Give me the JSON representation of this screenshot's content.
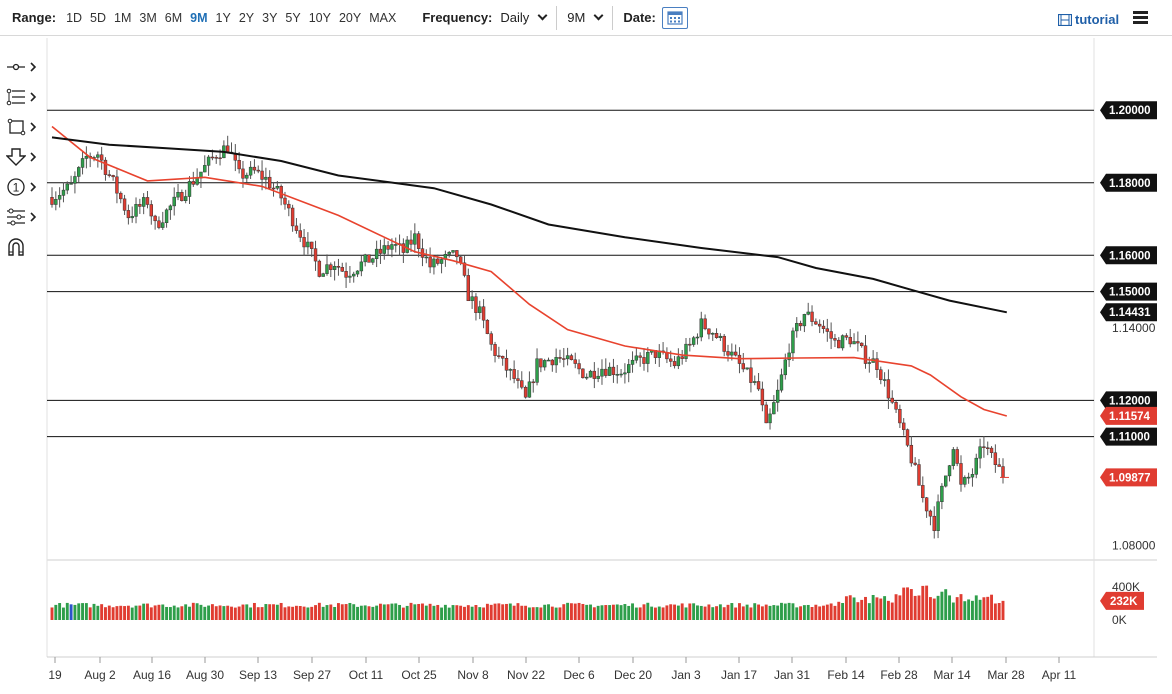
{
  "toolbar": {
    "range_label": "Range:",
    "ranges": [
      "1D",
      "5D",
      "1M",
      "3M",
      "6M",
      "9M",
      "1Y",
      "2Y",
      "3Y",
      "5Y",
      "10Y",
      "20Y",
      "MAX"
    ],
    "active_range": "9M",
    "frequency_label": "Frequency:",
    "frequency_value": "Daily",
    "period_value": "9M",
    "date_label": "Date:",
    "tutorial_label": "tutorial"
  },
  "tools": [
    "crosshair-tool-icon",
    "fibonacci-tool-icon",
    "rectangle-tool-icon",
    "arrow-down-tool-icon",
    "number-marker-tool-icon",
    "settings-sliders-icon",
    "magnet-icon"
  ],
  "colors": {
    "bull": "#2e9e4a",
    "bear": "#e03c31",
    "ma_short": "#e8432e",
    "ma_long": "#111111",
    "price_tag": "#e03c31",
    "level_tag": "#111111"
  },
  "chart_data": {
    "type": "candlestick",
    "title": "",
    "price_axis": {
      "ylim": [
        1.071,
        1.2045
      ],
      "tick_labels": [
        "1.14000",
        "1.08000"
      ],
      "level_lines": [
        "1.20000",
        "1.18000",
        "1.16000",
        "1.15000",
        "1.12000",
        "1.11000"
      ]
    },
    "x_axis": {
      "tick_labels": [
        "19",
        "Aug 2",
        "Aug 16",
        "Aug 30",
        "Sep 13",
        "Sep 27",
        "Oct 11",
        "Oct 25",
        "Nov 8",
        "Nov 22",
        "Dec 6",
        "Dec 20",
        "Jan 3",
        "Jan 17",
        "Jan 31",
        "Feb 14",
        "Feb 28",
        "Mar 14",
        "Mar 28",
        "Apr 11"
      ]
    },
    "tags": [
      {
        "label": "1.20000",
        "value": 1.2,
        "kind": "level"
      },
      {
        "label": "1.18000",
        "value": 1.18,
        "kind": "level"
      },
      {
        "label": "1.16000",
        "value": 1.16,
        "kind": "level"
      },
      {
        "label": "1.15000",
        "value": 1.15,
        "kind": "level"
      },
      {
        "label": "1.14431",
        "value": 1.14431,
        "kind": "ma_long"
      },
      {
        "label": "1.12000",
        "value": 1.12,
        "kind": "level"
      },
      {
        "label": "1.11574",
        "value": 1.11574,
        "kind": "ma_short"
      },
      {
        "label": "1.11000",
        "value": 1.11,
        "kind": "level"
      },
      {
        "label": "1.09877",
        "value": 1.09877,
        "kind": "price"
      }
    ],
    "last_price": 1.09877,
    "series": [
      {
        "name": "",
        "type": "moving-average",
        "color": "#e8432e",
        "points": [
          [
            0,
            1.1955
          ],
          [
            10,
            1.187
          ],
          [
            25,
            1.1805
          ],
          [
            40,
            1.1815
          ],
          [
            55,
            1.179
          ],
          [
            75,
            1.171
          ],
          [
            95,
            1.161
          ],
          [
            105,
            1.1585
          ],
          [
            115,
            1.1555
          ],
          [
            125,
            1.1465
          ],
          [
            135,
            1.1395
          ],
          [
            150,
            1.135
          ],
          [
            165,
            1.1325
          ],
          [
            180,
            1.1315
          ],
          [
            195,
            1.1317
          ],
          [
            210,
            1.1318
          ],
          [
            225,
            1.1295
          ],
          [
            230,
            1.127
          ],
          [
            238,
            1.121
          ],
          [
            244,
            1.1175
          ],
          [
            250,
            1.1157
          ]
        ]
      },
      {
        "name": "",
        "type": "moving-average",
        "color": "#111111",
        "points": [
          [
            0,
            1.1925
          ],
          [
            15,
            1.1905
          ],
          [
            30,
            1.1895
          ],
          [
            45,
            1.1885
          ],
          [
            60,
            1.186
          ],
          [
            75,
            1.182
          ],
          [
            100,
            1.1785
          ],
          [
            115,
            1.174
          ],
          [
            130,
            1.1685
          ],
          [
            150,
            1.165
          ],
          [
            170,
            1.162
          ],
          [
            190,
            1.1595
          ],
          [
            200,
            1.1565
          ],
          [
            215,
            1.1535
          ],
          [
            225,
            1.1505
          ],
          [
            235,
            1.1475
          ],
          [
            250,
            1.1443
          ]
        ]
      }
    ],
    "volume": {
      "axis_labels": [
        "400K",
        "0K"
      ],
      "axis_values": [
        400000,
        0
      ],
      "last_label": "232K",
      "last_value": 232000
    },
    "candles_note": "daily OHLC, ~250 sessions"
  }
}
